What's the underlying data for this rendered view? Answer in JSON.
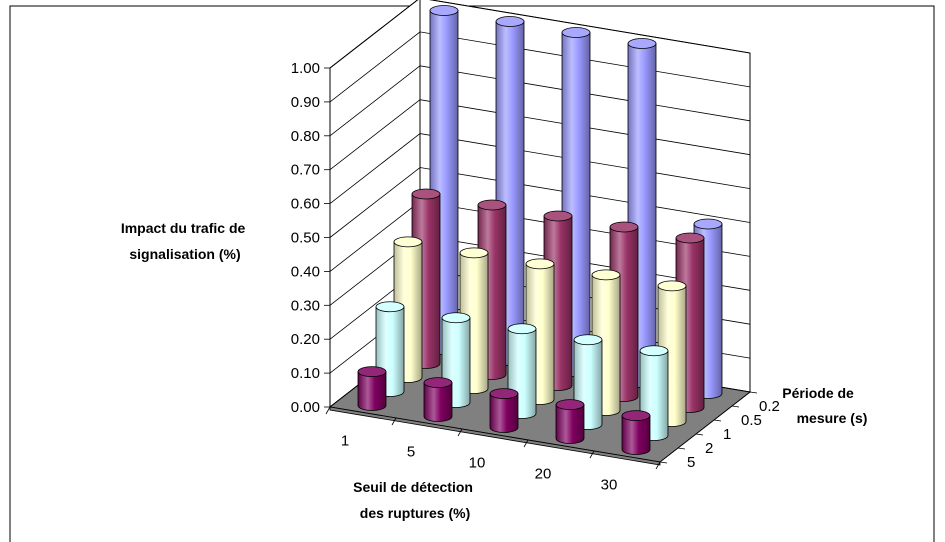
{
  "chart_data": {
    "type": "bar",
    "subtype": "3d-cylinder",
    "title": "",
    "zlabel_lines": [
      "Impact du trafic de",
      "signalisation (%)"
    ],
    "xlabel_lines": [
      "Seuil de détection",
      "des ruptures (%)"
    ],
    "ylabel_lines": [
      "Période de",
      "mesure (s)"
    ],
    "x_categories": [
      "1",
      "5",
      "10",
      "20",
      "30"
    ],
    "y_categories": [
      "5",
      "2",
      "1",
      "0.5",
      "0.2"
    ],
    "zlim": [
      0,
      1.0
    ],
    "z_ticks": [
      "0.00",
      "0.10",
      "0.20",
      "0.30",
      "0.40",
      "0.50",
      "0.60",
      "0.70",
      "0.80",
      "0.90",
      "1.00"
    ],
    "grid": true,
    "series": [
      {
        "name": "5",
        "color": "#800060",
        "values": [
          0.1,
          0.1,
          0.1,
          0.1,
          0.1
        ]
      },
      {
        "name": "2",
        "color": "#ccffff",
        "values": [
          0.25,
          0.25,
          0.25,
          0.25,
          0.25
        ]
      },
      {
        "name": "1",
        "color": "#ffffcc",
        "values": [
          0.4,
          0.4,
          0.4,
          0.4,
          0.4
        ]
      },
      {
        "name": "0.5",
        "color": "#993366",
        "values": [
          0.5,
          0.5,
          0.5,
          0.5,
          0.5
        ]
      },
      {
        "name": "0.2",
        "color": "#9999ff",
        "values": [
          1.0,
          1.0,
          1.0,
          1.0,
          0.5
        ]
      }
    ]
  }
}
